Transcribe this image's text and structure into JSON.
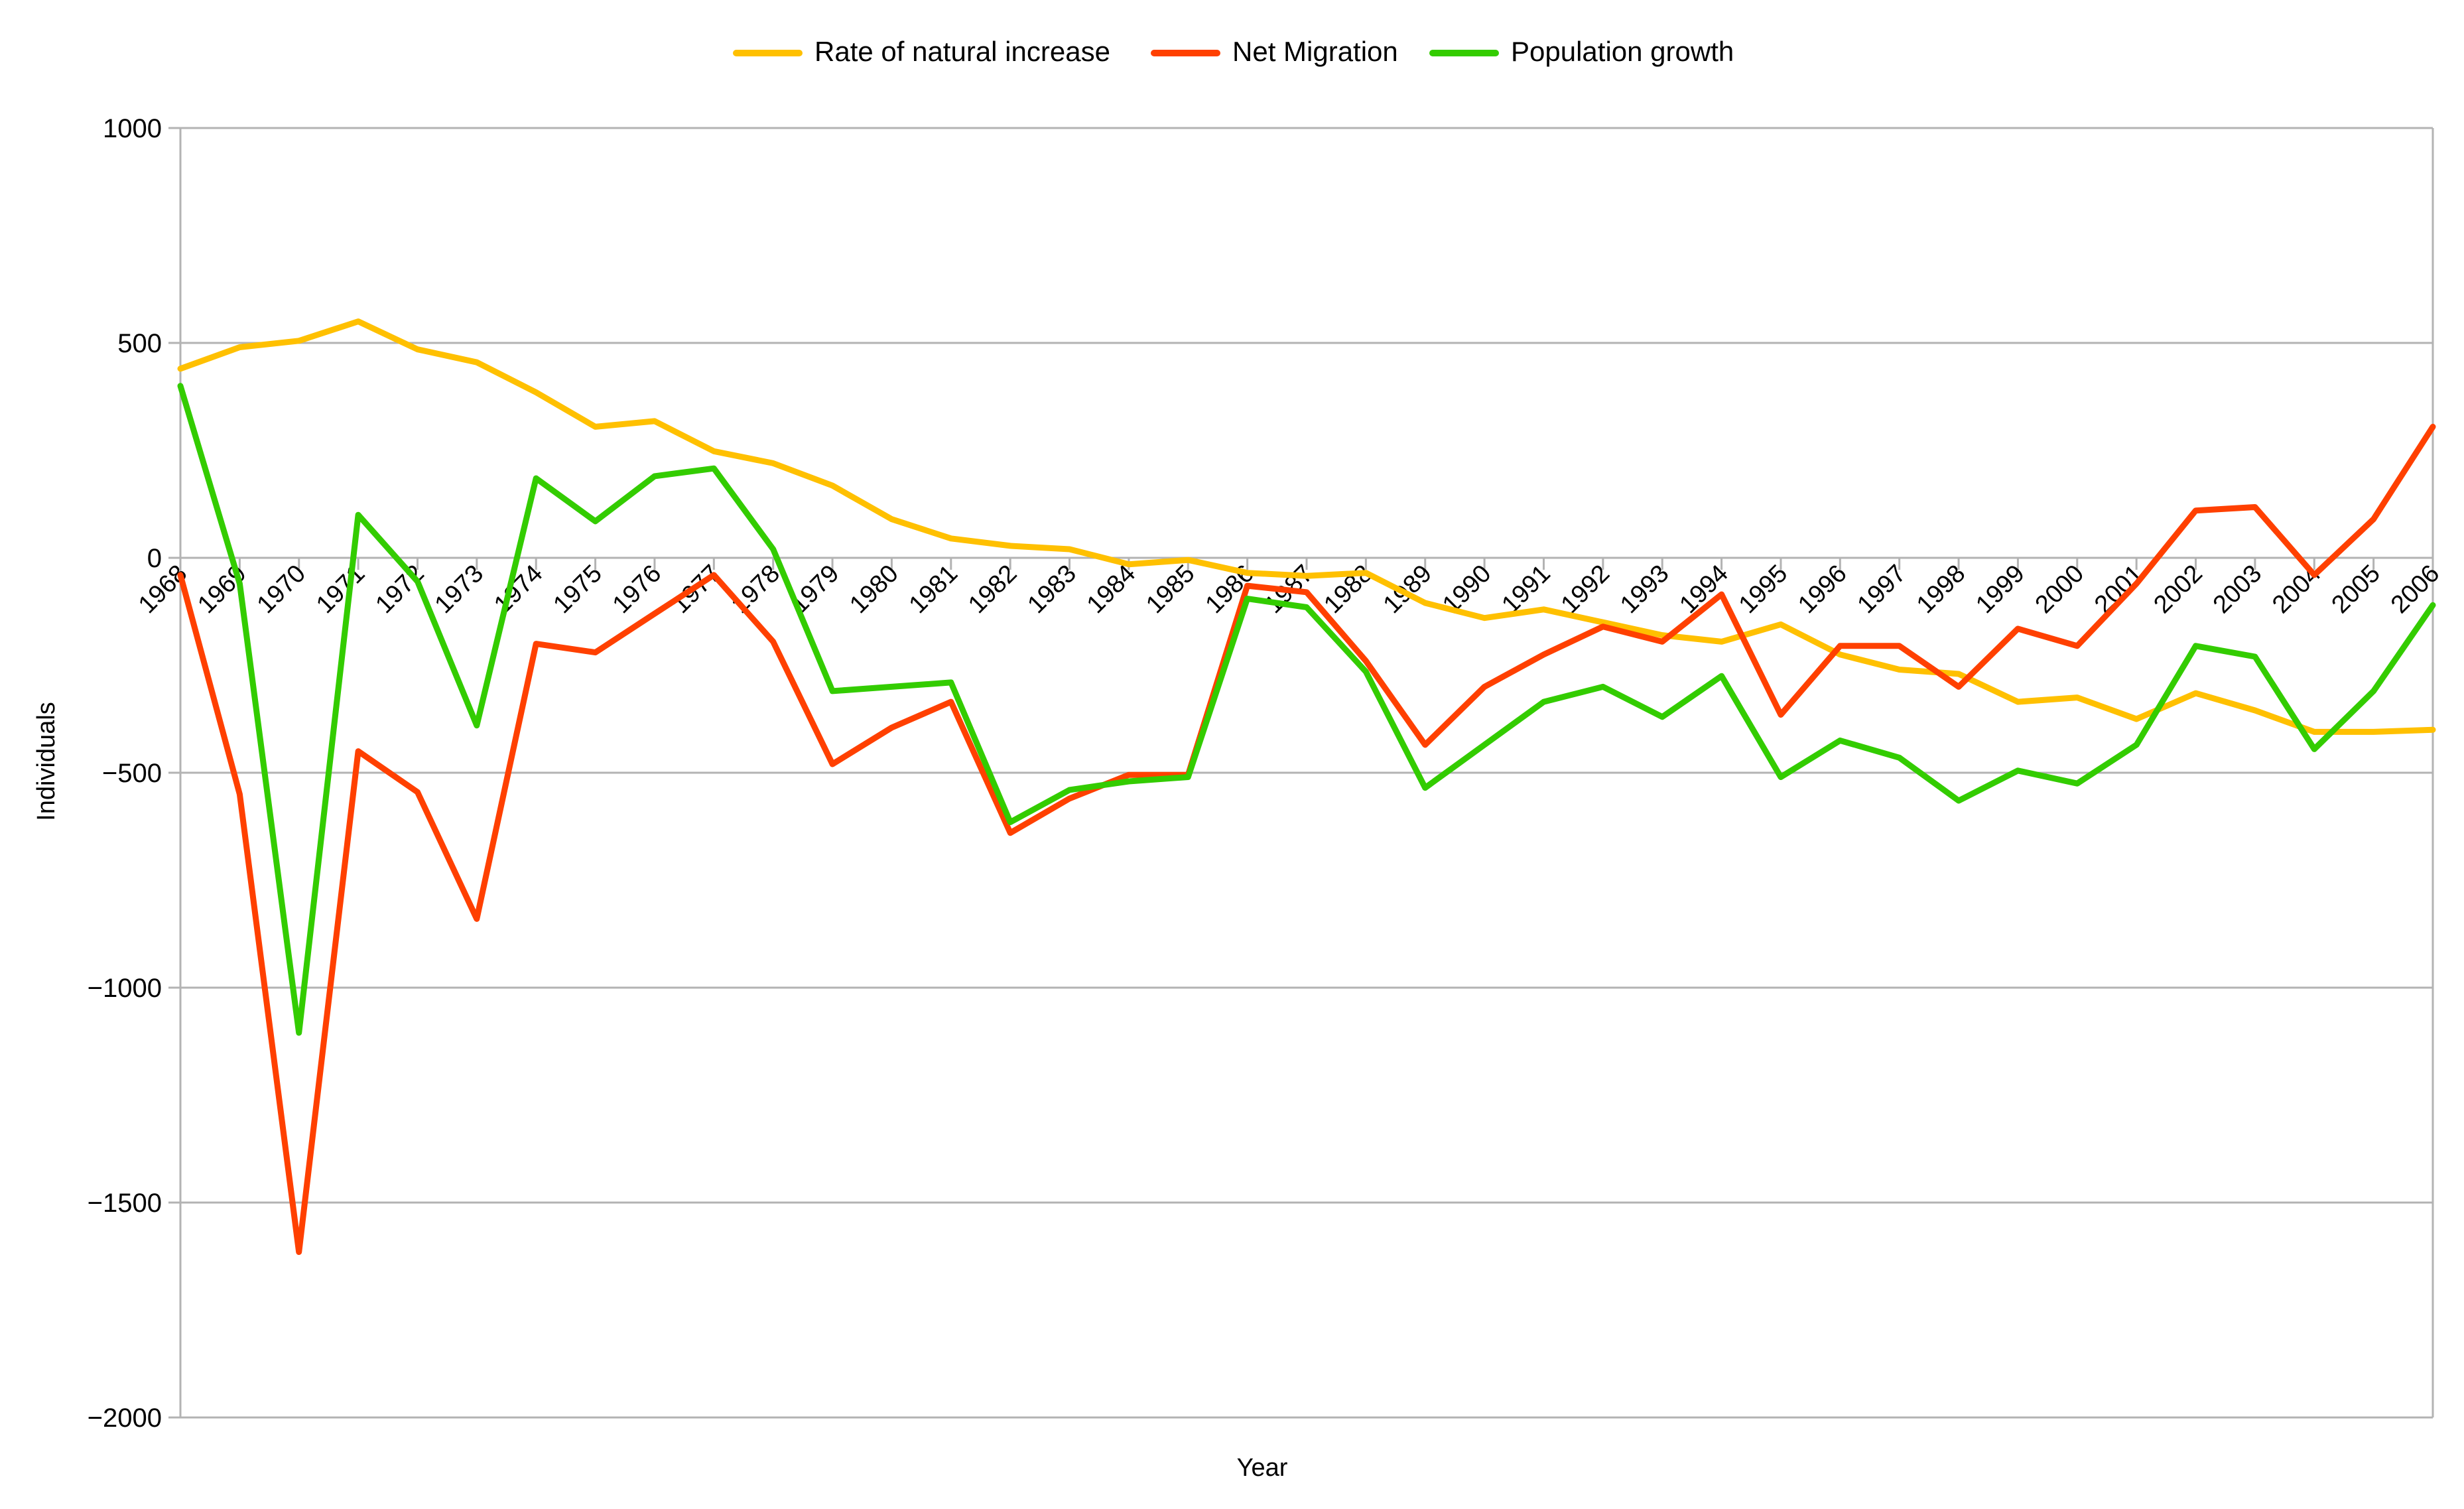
{
  "chart_data": {
    "type": "line",
    "title": "",
    "xlabel": "Year",
    "ylabel": "Individuals",
    "ylim": [
      -2000,
      1000
    ],
    "yticks": [
      -2000,
      -1500,
      -1000,
      -500,
      0,
      500,
      1000
    ],
    "ytick_labels": [
      "−2000",
      "−1500",
      "−1000",
      "−500",
      "0",
      "500",
      "1000"
    ],
    "grid": "horizontal",
    "legend_position": "top-center",
    "categories": [
      "1968",
      "1969",
      "1970",
      "1971",
      "1972",
      "1973",
      "1974",
      "1975",
      "1976",
      "1977",
      "1978",
      "1979",
      "1980",
      "1981",
      "1982",
      "1983",
      "1984",
      "1985",
      "1986",
      "1987",
      "1988",
      "1989",
      "1990",
      "1991",
      "1992",
      "1993",
      "1994",
      "1995",
      "1996",
      "1997",
      "1998",
      "1999",
      "2000",
      "2001",
      "2002",
      "2003",
      "2004",
      "2005",
      "2006"
    ],
    "series": [
      {
        "name": "Rate of natural increase",
        "color": "#ffc000",
        "values": [
          440,
          490,
          505,
          550,
          485,
          455,
          385,
          305,
          318,
          248,
          220,
          168,
          90,
          45,
          28,
          20,
          -15,
          -5,
          -35,
          -42,
          -35,
          -105,
          -140,
          -120,
          -150,
          -180,
          -195,
          -155,
          -225,
          -260,
          -270,
          -335,
          -325,
          -375,
          -315,
          -355,
          -405,
          -405,
          -400
        ]
      },
      {
        "name": "Net Migration",
        "color": "#ff4000",
        "values": [
          -40,
          -550,
          -1615,
          -450,
          -545,
          -840,
          -200,
          -220,
          -130,
          -40,
          -195,
          -480,
          -395,
          -335,
          -640,
          -560,
          -505,
          -505,
          -65,
          -80,
          -240,
          -435,
          -300,
          -225,
          -160,
          -195,
          -85,
          -365,
          -205,
          -205,
          -300,
          -165,
          -205,
          -60,
          110,
          118,
          -40,
          90,
          305
        ]
      },
      {
        "name": "Population growth",
        "color": "#33cc00",
        "values": [
          400,
          -60,
          -1105,
          100,
          -55,
          -390,
          185,
          85,
          190,
          208,
          20,
          -310,
          -300,
          -290,
          -615,
          -540,
          -520,
          -510,
          -95,
          -115,
          -265,
          -535,
          -435,
          -335,
          -300,
          -370,
          -275,
          -510,
          -425,
          -465,
          -565,
          -495,
          -525,
          -435,
          -205,
          -230,
          -445,
          -310,
          -110
        ]
      }
    ]
  }
}
